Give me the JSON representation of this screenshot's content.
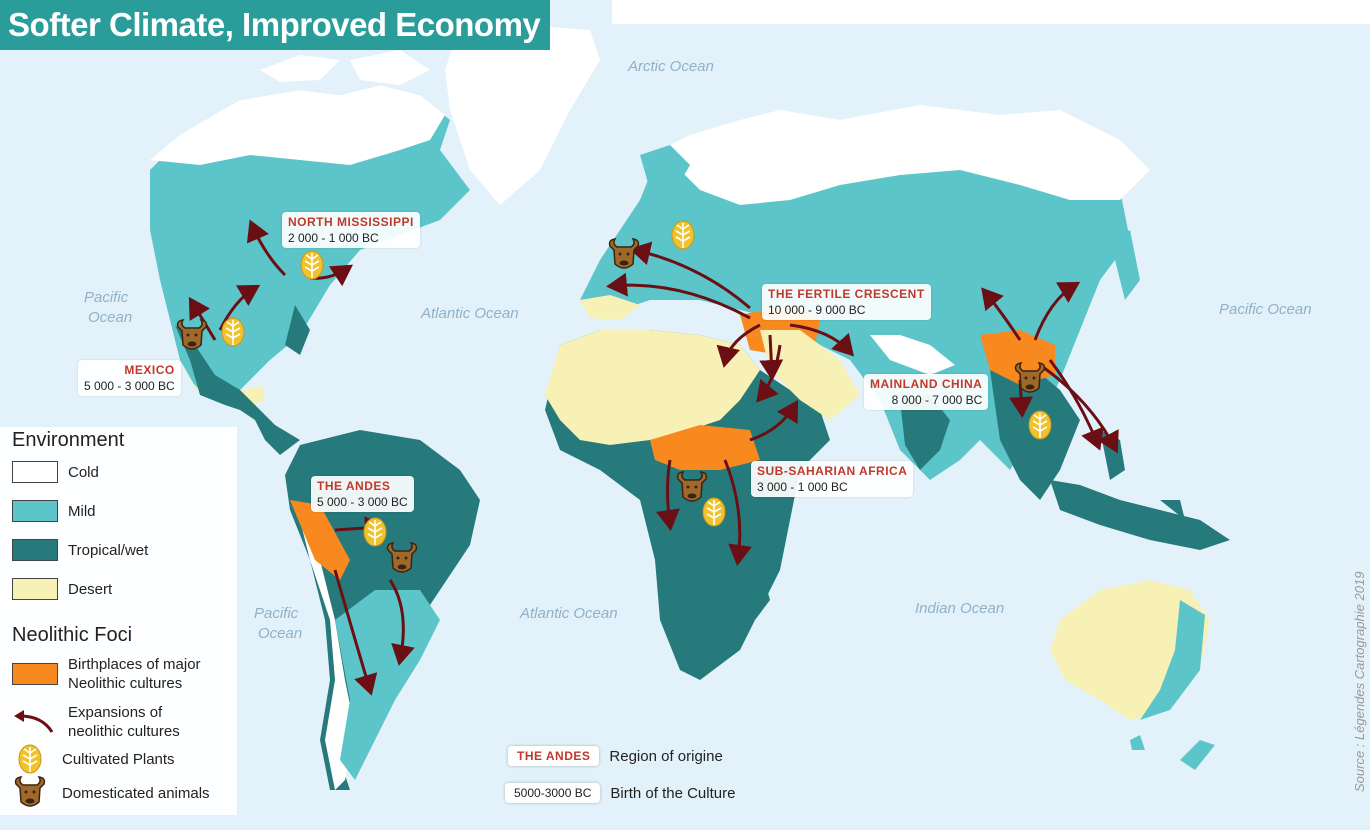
{
  "title": "Softer Climate, Improved Economy",
  "oceans": {
    "arctic": "Arctic Ocean",
    "pacific_west_1": "Pacific",
    "pacific_west_2": "Ocean",
    "atlantic_north": "Atlantic Ocean",
    "pacific_east": "Pacific Ocean",
    "pacific_south_1": "Pacific",
    "pacific_south_2": "Ocean",
    "atlantic_south": "Atlantic Ocean",
    "indian": "Indian Ocean"
  },
  "regions": {
    "north_mississippi": {
      "name": "NORTH MISSISSIPPI",
      "dates": "2 000 - 1 000 BC"
    },
    "mexico": {
      "name": "MEXICO",
      "dates": "5 000 - 3 000 BC"
    },
    "andes": {
      "name": "THE ANDES",
      "dates": "5 000 - 3 000 BC"
    },
    "fertile_crescent": {
      "name": "THE FERTILE CRESCENT",
      "dates": "10 000 - 9 000 BC"
    },
    "mainland_china": {
      "name": "MAINLAND CHINA",
      "dates": "8 000 - 7 000 BC"
    },
    "sub_saharan": {
      "name": "SUB-SAHARIAN AFRICA",
      "dates": "3 000 - 1 000 BC"
    }
  },
  "legend": {
    "environment_title": "Environment",
    "cold": "Cold",
    "mild": "Mild",
    "tropical": "Tropical/wet",
    "desert": "Desert",
    "foci_title": "Neolithic Foci",
    "birthplaces_1": "Birthplaces of major",
    "birthplaces_2": "Neolithic cultures",
    "expansions_1": "Expansions of",
    "expansions_2": "neolithic cultures",
    "plants": "Cultivated Plants",
    "animals": "Domesticated animals"
  },
  "key": {
    "chip_region": "THE ANDES",
    "region_text": "Region of origine",
    "chip_date": "5000-3000 BC",
    "date_text": "Birth of the Culture"
  },
  "source": "Source : Légendes Cartographie 2019",
  "colors": {
    "ocean": "#e3f2fa",
    "cold": "#ffffff",
    "mild": "#5cc5c9",
    "tropical": "#267a7c",
    "desert": "#f7f1b5",
    "birthplace": "#f7891f",
    "arrow": "#6b0f14",
    "title_bg": "#2a9d9a"
  },
  "icons": [
    "wheat-icon",
    "bull-head-icon",
    "expansion-arrow-icon"
  ]
}
